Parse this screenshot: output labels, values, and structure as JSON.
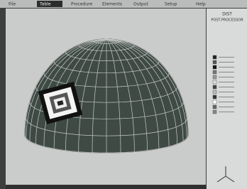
{
  "menu": [
    "File",
    "Table",
    "Procedure",
    "Elements",
    "Output",
    "Setup",
    "Help"
  ],
  "panel": {
    "title": "DIST",
    "subtitle": "POST-PROCESSOR"
  }
}
